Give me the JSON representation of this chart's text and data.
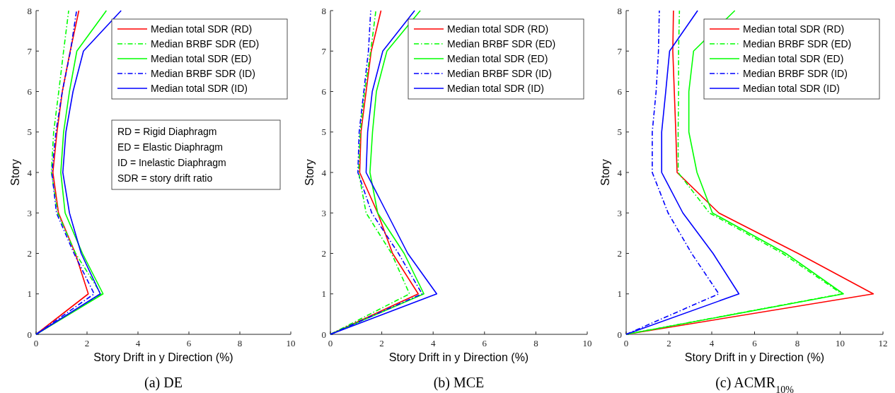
{
  "chart_data": [
    {
      "type": "line",
      "title": "(a) DE",
      "xlabel": "Story Drift in y Direction (%)",
      "ylabel": "Story",
      "xlim": [
        0,
        10
      ],
      "xticks": [
        0,
        2,
        4,
        6,
        8,
        10
      ],
      "ylim": [
        0,
        8
      ],
      "yticks": [
        0,
        1,
        2,
        3,
        4,
        5,
        6,
        7,
        8
      ],
      "legend": "top right",
      "annotations": [
        "RD = Rigid Diaphragm",
        "ED = Elastic Diaphragm",
        "ID = Inelastic Diaphragm",
        "SDR = story drift ratio"
      ],
      "series": [
        {
          "name": "Median total SDR (RD)",
          "color": "#ff0000",
          "line_style": "solid",
          "x": [
            0,
            2.05,
            1.54,
            0.88,
            0.66,
            0.82,
            1.03,
            1.34,
            1.68
          ],
          "values": [
            0,
            1,
            2,
            3,
            4,
            5,
            6,
            7,
            8
          ]
        },
        {
          "name": "Median BRBF SDR (ED)",
          "color": "#00ff00",
          "line_style": "dashed",
          "x": [
            0,
            2.55,
            1.55,
            0.85,
            0.6,
            0.69,
            0.89,
            1.08,
            1.28
          ],
          "values": [
            0,
            1,
            2,
            3,
            4,
            5,
            6,
            7,
            8
          ]
        },
        {
          "name": "Median total SDR (ED)",
          "color": "#00ff00",
          "line_style": "solid",
          "x": [
            0,
            2.63,
            1.82,
            1.14,
            0.97,
            1.08,
            1.31,
            1.6,
            2.76
          ],
          "values": [
            0,
            1,
            2,
            3,
            4,
            5,
            6,
            7,
            8
          ]
        },
        {
          "name": "Median BRBF SDR (ID)",
          "color": "#0000ff",
          "line_style": "dashed",
          "x": [
            0,
            2.28,
            1.49,
            0.8,
            0.62,
            0.78,
            1.03,
            1.35,
            1.59
          ],
          "values": [
            0,
            1,
            2,
            3,
            4,
            5,
            6,
            7,
            8
          ]
        },
        {
          "name": "Median total SDR (ID)",
          "color": "#0000ff",
          "line_style": "solid",
          "x": [
            0,
            2.52,
            1.77,
            1.31,
            1.05,
            1.17,
            1.45,
            1.86,
            3.34
          ],
          "values": [
            0,
            1,
            2,
            3,
            4,
            5,
            6,
            7,
            8
          ]
        }
      ]
    },
    {
      "type": "line",
      "title": "(b) MCE",
      "xlabel": "Story Drift in y Direction (%)",
      "ylabel": "Story",
      "xlim": [
        0,
        10
      ],
      "xticks": [
        0,
        2,
        4,
        6,
        8,
        10
      ],
      "ylim": [
        0,
        8
      ],
      "yticks": [
        0,
        1,
        2,
        3,
        4,
        5,
        6,
        7,
        8
      ],
      "legend": "top right",
      "series": [
        {
          "name": "Median total SDR (RD)",
          "color": "#ff0000",
          "line_style": "solid",
          "x": [
            0,
            3.42,
            2.42,
            1.84,
            1.14,
            1.19,
            1.39,
            1.59,
            1.97
          ],
          "values": [
            0,
            1,
            2,
            3,
            4,
            5,
            6,
            7,
            8
          ]
        },
        {
          "name": "Median BRBF SDR (ED)",
          "color": "#00ff00",
          "line_style": "dashed",
          "x": [
            0,
            3.08,
            2.38,
            1.39,
            1.1,
            1.16,
            1.33,
            1.57,
            1.77
          ],
          "values": [
            0,
            1,
            2,
            3,
            4,
            5,
            6,
            7,
            8
          ]
        },
        {
          "name": "Median total SDR (ED)",
          "color": "#00ff00",
          "line_style": "solid",
          "x": [
            0,
            3.64,
            2.87,
            1.84,
            1.54,
            1.64,
            1.79,
            2.2,
            3.5
          ],
          "values": [
            0,
            1,
            2,
            3,
            4,
            5,
            6,
            7,
            8
          ]
        },
        {
          "name": "Median BRBF SDR (ID)",
          "color": "#0000ff",
          "line_style": "dashed",
          "x": [
            0,
            3.57,
            2.65,
            1.61,
            1.07,
            1.12,
            1.3,
            1.48,
            1.57
          ],
          "values": [
            0,
            1,
            2,
            3,
            4,
            5,
            6,
            7,
            8
          ]
        },
        {
          "name": "Median total SDR (ID)",
          "color": "#0000ff",
          "line_style": "solid",
          "x": [
            0,
            4.14,
            3.01,
            2.2,
            1.39,
            1.45,
            1.63,
            2.04,
            3.28
          ],
          "values": [
            0,
            1,
            2,
            3,
            4,
            5,
            6,
            7,
            8
          ]
        }
      ]
    },
    {
      "type": "line",
      "title": "(c) ACMR$_{10%}$",
      "xlabel": "Story Drift in y Direction (%)",
      "ylabel": "Story",
      "xlim": [
        0,
        12
      ],
      "xticks": [
        0,
        2,
        4,
        6,
        8,
        10,
        12
      ],
      "ylim": [
        0,
        8
      ],
      "yticks": [
        0,
        1,
        2,
        3,
        4,
        5,
        6,
        7,
        8
      ],
      "legend": "top right",
      "series": [
        {
          "name": "Median total SDR (RD)",
          "color": "#ff0000",
          "line_style": "solid",
          "x": [
            0,
            11.55,
            8.03,
            4.33,
            2.38,
            2.32,
            2.25,
            2.18,
            2.21
          ],
          "values": [
            0,
            1,
            2,
            3,
            4,
            5,
            6,
            7,
            8
          ]
        },
        {
          "name": "Median BRBF SDR (ED)",
          "color": "#00ff00",
          "line_style": "dashed",
          "x": [
            0,
            10.08,
            7.31,
            3.89,
            2.43,
            2.43,
            2.45,
            2.45,
            2.49
          ],
          "values": [
            0,
            1,
            2,
            3,
            4,
            5,
            6,
            7,
            8
          ]
        },
        {
          "name": "Median total SDR (ED)",
          "color": "#00ff00",
          "line_style": "solid",
          "x": [
            0,
            10.15,
            7.46,
            4.03,
            3.31,
            2.93,
            2.93,
            3.15,
            5.08
          ],
          "values": [
            0,
            1,
            2,
            3,
            4,
            5,
            6,
            7,
            8
          ]
        },
        {
          "name": "Median BRBF SDR (ID)",
          "color": "#0000ff",
          "line_style": "dashed",
          "x": [
            0,
            4.33,
            3.06,
            1.96,
            1.22,
            1.22,
            1.4,
            1.51,
            1.55
          ],
          "values": [
            0,
            1,
            2,
            3,
            4,
            5,
            6,
            7,
            8
          ]
        },
        {
          "name": "Median total SDR (ID)",
          "color": "#0000ff",
          "line_style": "solid",
          "x": [
            0,
            5.27,
            4.06,
            2.65,
            1.66,
            1.66,
            1.85,
            2.03,
            3.34
          ],
          "values": [
            0,
            1,
            2,
            3,
            4,
            5,
            6,
            7,
            8
          ]
        }
      ]
    }
  ]
}
